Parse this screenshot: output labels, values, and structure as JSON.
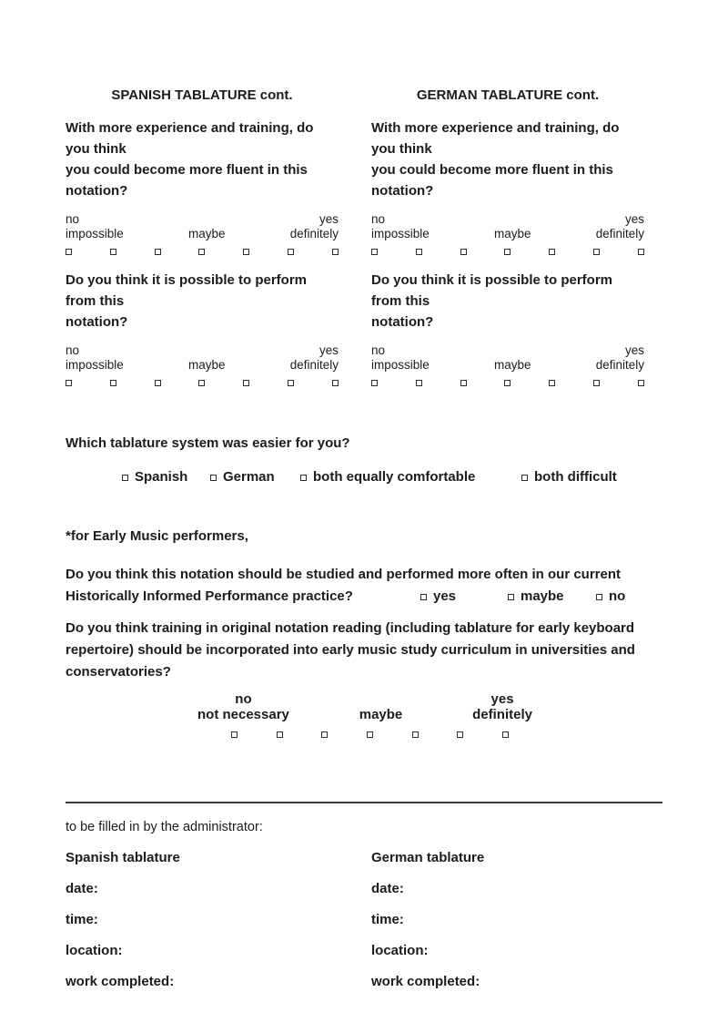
{
  "page": {
    "background": "#ffffff",
    "text_color": "#1c1c1c",
    "divider_color": "#3a3a3a"
  },
  "tablature_sections": [
    {
      "title": "SPANISH TABLATURE cont.",
      "fluency_lines": [
        "With more experience and training, do you think",
        "you could become more fluent in this notation?"
      ],
      "perform_lines": [
        "Do you think it is possible to perform from this",
        "notation?"
      ]
    },
    {
      "title": "GERMAN TABLATURE cont.",
      "fluency_lines": [
        "With more experience and training, do you think",
        "you could become more fluent in this notation?"
      ],
      "perform_lines": [
        "Do you think it is possible to perform from this",
        "notation?"
      ]
    }
  ],
  "rating_scale": {
    "no_label": "no",
    "yes_label": "yes",
    "low_label": "impossible",
    "mid_label": "maybe",
    "high_label": "definitely",
    "checkbox_count": 7
  },
  "easier_question": {
    "text": "Which tablature system was easier for you?",
    "options": [
      "Spanish",
      "German",
      "both equally comfortable",
      "both difficult"
    ]
  },
  "early_music": {
    "note": "*for Early Music performers,",
    "hip_line1": "Do you think this notation should be studied and performed more often in our current",
    "hip_line2": "Historically Informed Performance practice?",
    "hip_options": [
      "yes",
      "maybe",
      "no"
    ],
    "curriculum_lines": [
      "Do you think training in original notation reading (including tablature for early keyboard",
      "repertoire) should be incorporated into early music study curriculum in universities and",
      "conservatories?"
    ],
    "curriculum_scale": {
      "no_label": "no",
      "no_sublabel": "not necessary",
      "mid_label": "maybe",
      "yes_label": "yes",
      "yes_sublabel": "definitely",
      "checkbox_count": 7
    }
  },
  "admin_section": {
    "note": "to be filled in by the administrator:",
    "columns": [
      {
        "title": "Spanish tablature",
        "fields": [
          "date:",
          "time:",
          "location:",
          "work completed:"
        ]
      },
      {
        "title": "German tablature",
        "fields": [
          "date:",
          "time:",
          "location:",
          "work completed:"
        ]
      }
    ]
  }
}
